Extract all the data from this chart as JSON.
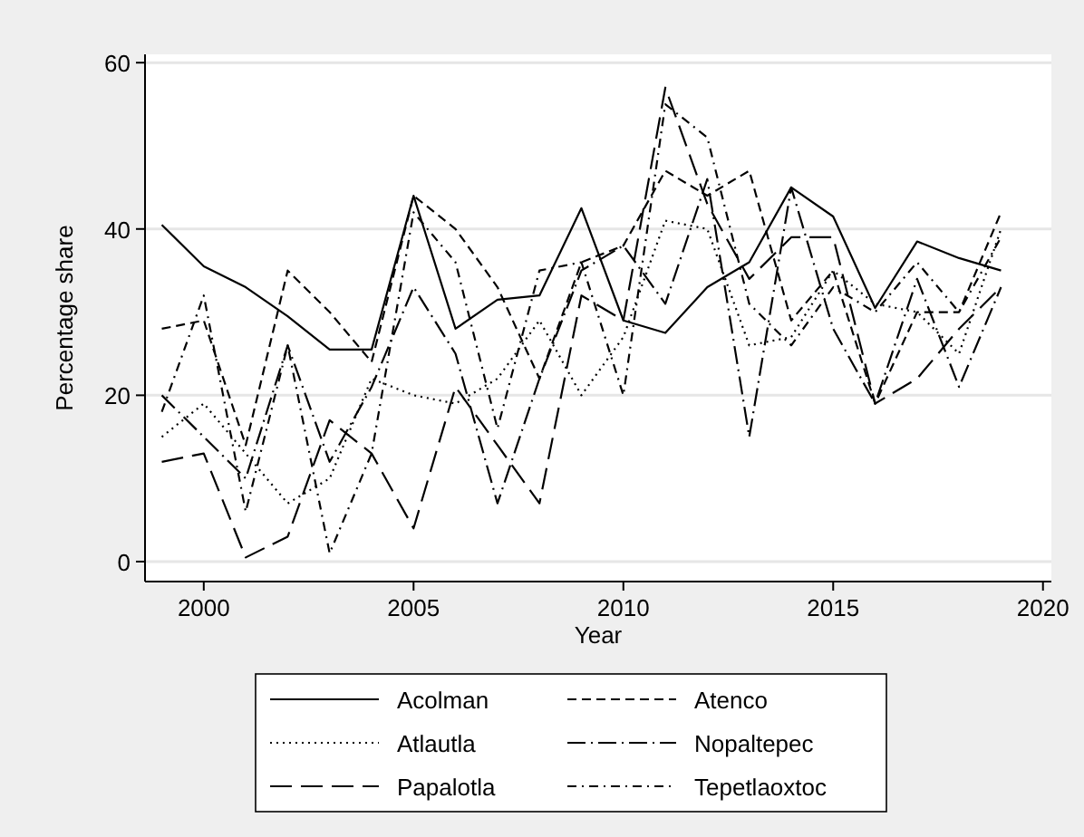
{
  "chart_data": {
    "type": "line",
    "xlabel": "Year",
    "ylabel": "Percentage share",
    "x": [
      1999,
      2000,
      2001,
      2002,
      2003,
      2004,
      2005,
      2006,
      2007,
      2008,
      2009,
      2010,
      2011,
      2012,
      2013,
      2014,
      2015,
      2016,
      2017,
      2018,
      2019
    ],
    "xlim": [
      1998.6,
      2020.2
    ],
    "xticks": [
      2000,
      2005,
      2010,
      2015,
      2020
    ],
    "ylim": [
      -2.4,
      61
    ],
    "yticks": [
      0,
      20,
      40,
      60
    ],
    "grid": "y",
    "legend": "bottom",
    "series": [
      {
        "name": "Acolman",
        "color": "#000000",
        "line_style": "solid",
        "values": [
          40.5,
          35.5,
          33,
          29.5,
          25.5,
          25.5,
          44,
          28,
          31.5,
          32,
          42.5,
          29,
          27.5,
          33,
          36,
          45,
          41.5,
          30.5,
          38.5,
          36.5,
          35
        ]
      },
      {
        "name": "Atenco",
        "color": "#000000",
        "line_style": "dashed",
        "values": [
          28,
          29,
          14,
          35,
          30,
          24,
          44,
          40,
          33,
          22,
          36,
          38,
          47,
          44,
          47,
          29,
          35,
          19,
          30,
          30,
          42
        ]
      },
      {
        "name": "Atlautla",
        "color": "#000000",
        "line_style": "dotted",
        "values": [
          15,
          19,
          13,
          7,
          10,
          22,
          20,
          19,
          22,
          29,
          20,
          27,
          41,
          40,
          26,
          27,
          35,
          31,
          30,
          25,
          40
        ]
      },
      {
        "name": "Nopaltepec",
        "color": "#000000",
        "line_style": "longdashdot",
        "values": [
          20,
          15,
          10,
          26,
          12,
          21,
          33,
          25,
          7,
          22,
          35,
          38,
          31,
          46,
          15,
          45,
          28,
          19,
          34,
          21,
          33
        ]
      },
      {
        "name": "Papalotla",
        "color": "#000000",
        "line_style": "longdash",
        "values": [
          12,
          13,
          0.5,
          3,
          17,
          13,
          4,
          21,
          14,
          7,
          32,
          29,
          57,
          43,
          34,
          39,
          39,
          19,
          22,
          28,
          33
        ]
      },
      {
        "name": "Tepetlaoxtoc",
        "color": "#000000",
        "line_style": "dashdot",
        "values": [
          18,
          32,
          6,
          26,
          1,
          13,
          42,
          36,
          16,
          35,
          36,
          20,
          55,
          51,
          31,
          26,
          33,
          30,
          36,
          30,
          39
        ]
      }
    ]
  }
}
